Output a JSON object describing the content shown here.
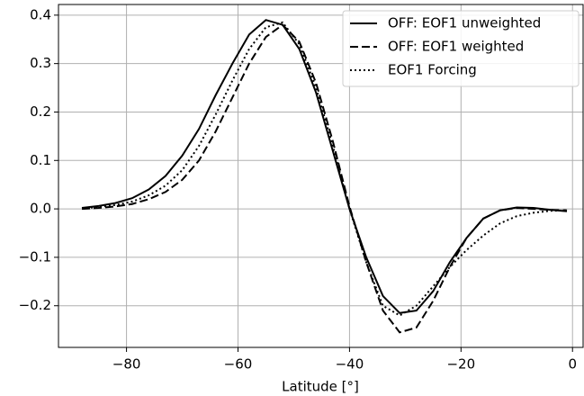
{
  "chart_data": {
    "type": "line",
    "xlabel": "Latitude [°]",
    "x": [
      -88,
      -85,
      -82,
      -79,
      -76,
      -73,
      -70,
      -67,
      -64,
      -61,
      -58,
      -55,
      -52,
      -49,
      -46,
      -43,
      -40,
      -37,
      -34,
      -31,
      -28,
      -25,
      -22,
      -19,
      -16,
      -13,
      -10,
      -7,
      -4,
      -1
    ],
    "series": [
      {
        "name": "OFF: EOF1 unweighted",
        "color": "#000000",
        "dash": "solid",
        "values": [
          0.002,
          0.006,
          0.012,
          0.022,
          0.04,
          0.068,
          0.11,
          0.165,
          0.235,
          0.3,
          0.36,
          0.39,
          0.38,
          0.33,
          0.24,
          0.12,
          0.0,
          -0.1,
          -0.18,
          -0.215,
          -0.21,
          -0.17,
          -0.11,
          -0.06,
          -0.02,
          -0.003,
          0.003,
          0.002,
          -0.002,
          -0.005
        ]
      },
      {
        "name": "OFF: EOF1 weighted",
        "color": "#000000",
        "dash": "dashed",
        "values": [
          0.0,
          0.002,
          0.005,
          0.01,
          0.02,
          0.035,
          0.06,
          0.1,
          0.16,
          0.23,
          0.3,
          0.355,
          0.38,
          0.345,
          0.26,
          0.14,
          0.005,
          -0.11,
          -0.21,
          -0.255,
          -0.245,
          -0.19,
          -0.12,
          -0.06,
          -0.02,
          -0.003,
          0.002,
          0.0,
          -0.002,
          -0.003
        ]
      },
      {
        "name": "EOF1 Forcing",
        "color": "#000000",
        "dash": "dotted",
        "values": [
          0.001,
          0.004,
          0.008,
          0.015,
          0.028,
          0.048,
          0.08,
          0.13,
          0.195,
          0.265,
          0.33,
          0.375,
          0.385,
          0.34,
          0.25,
          0.13,
          0.0,
          -0.11,
          -0.2,
          -0.22,
          -0.2,
          -0.16,
          -0.12,
          -0.085,
          -0.055,
          -0.03,
          -0.015,
          -0.008,
          -0.004,
          -0.003
        ]
      }
    ],
    "xlim": [
      -92.2,
      1.9
    ],
    "ylim": [
      -0.286,
      0.422
    ],
    "xticks": [
      {
        "value": -80,
        "label": "−80"
      },
      {
        "value": -60,
        "label": "−60"
      },
      {
        "value": -40,
        "label": "−40"
      },
      {
        "value": -20,
        "label": "−20"
      },
      0
    ],
    "yticks": [
      {
        "value": -0.2,
        "label": "−0.2"
      },
      {
        "value": -0.1,
        "label": "−0.1"
      },
      {
        "value": 0,
        "label": "0.0"
      },
      0.1,
      0.2,
      0.3,
      0.4
    ],
    "grid": true,
    "legend": "upper right"
  }
}
